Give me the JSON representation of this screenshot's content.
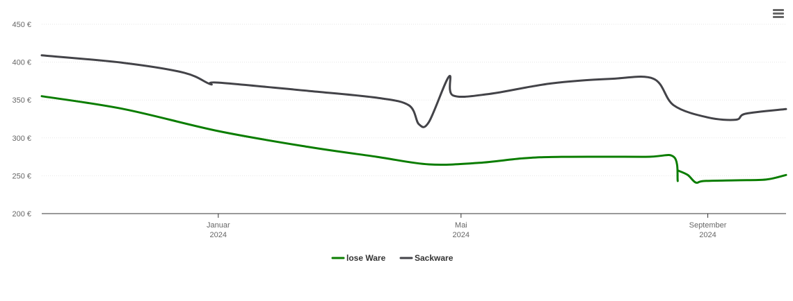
{
  "chart_data": {
    "type": "line",
    "x_axis": {
      "type": "date",
      "range": [
        "2023-10-05",
        "2024-10-10"
      ],
      "ticks": [
        {
          "date": "2024-01-01",
          "label": "Januar",
          "year": "2024"
        },
        {
          "date": "2024-05-01",
          "label": "Mai",
          "year": "2024"
        },
        {
          "date": "2024-09-01",
          "label": "September",
          "year": "2024"
        }
      ]
    },
    "y_axis": {
      "range": [
        200,
        450
      ],
      "ticks": [
        200,
        250,
        300,
        350,
        400,
        450
      ],
      "unit": "€",
      "tick_labels": [
        "200 €",
        "250 €",
        "300 €",
        "350 €",
        "400 €",
        "450 €"
      ],
      "grid": true
    },
    "legend_position": "bottom-center",
    "series": [
      {
        "name": "lose Ware",
        "color": "#0a7d00",
        "points": [
          [
            "2023-10-05",
            355
          ],
          [
            "2023-11-15",
            338
          ],
          [
            "2024-01-01",
            309
          ],
          [
            "2024-02-15",
            288
          ],
          [
            "2024-03-20",
            275
          ],
          [
            "2024-04-15",
            265
          ],
          [
            "2024-05-10",
            267
          ],
          [
            "2024-06-01",
            273
          ],
          [
            "2024-06-20",
            275
          ],
          [
            "2024-08-01",
            275
          ],
          [
            "2024-08-15",
            275
          ],
          [
            "2024-08-17",
            243
          ]
        ],
        "points_b": [
          [
            "2024-08-17",
            257
          ],
          [
            "2024-08-22",
            251
          ],
          [
            "2024-08-26",
            241
          ],
          [
            "2024-08-30",
            243
          ],
          [
            "2024-09-15",
            244
          ],
          [
            "2024-09-30",
            245
          ],
          [
            "2024-10-10",
            251
          ]
        ]
      },
      {
        "name": "Sackware",
        "color": "#434348",
        "points": [
          [
            "2023-10-05",
            409
          ],
          [
            "2023-11-15",
            399
          ],
          [
            "2023-12-15",
            386
          ],
          [
            "2023-12-28",
            371
          ],
          [
            "2024-01-01",
            373
          ],
          [
            "2024-02-15",
            362
          ],
          [
            "2024-03-20",
            353
          ],
          [
            "2024-04-05",
            343
          ],
          [
            "2024-04-10",
            318
          ],
          [
            "2024-04-15",
            321
          ],
          [
            "2024-04-25",
            381
          ],
          [
            "2024-04-27",
            356
          ],
          [
            "2024-05-15",
            358
          ],
          [
            "2024-06-15",
            372
          ],
          [
            "2024-07-15",
            378
          ],
          [
            "2024-08-05",
            378
          ],
          [
            "2024-08-15",
            343
          ],
          [
            "2024-09-01",
            327
          ],
          [
            "2024-09-15",
            324
          ],
          [
            "2024-09-20",
            332
          ],
          [
            "2024-10-10",
            338
          ]
        ]
      }
    ]
  },
  "ui": {
    "menu_icon": "hamburger-menu-icon"
  }
}
